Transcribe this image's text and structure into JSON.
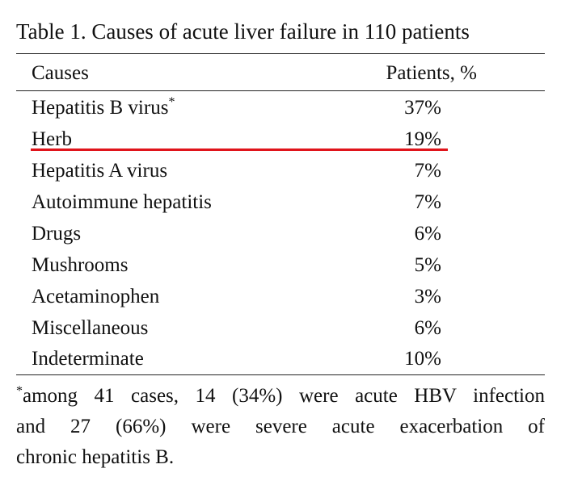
{
  "table": {
    "title": "Table 1. Causes of acute liver failure in 110 patients",
    "header": {
      "cause": "Causes",
      "patients": "Patients, %"
    },
    "rows": [
      {
        "cause": "Hepatitis B virus",
        "marker": "*",
        "patients": "37%"
      },
      {
        "cause": "Herb",
        "marker": "",
        "patients": "19%"
      },
      {
        "cause": "Hepatitis A virus",
        "marker": "",
        "patients": "7%"
      },
      {
        "cause": "Autoimmune hepatitis",
        "marker": "",
        "patients": "7%"
      },
      {
        "cause": "Drugs",
        "marker": "",
        "patients": "6%"
      },
      {
        "cause": "Mushrooms",
        "marker": "",
        "patients": "5%"
      },
      {
        "cause": "Acetaminophen",
        "marker": "",
        "patients": "3%"
      },
      {
        "cause": "Miscellaneous",
        "marker": "",
        "patients": "6%"
      },
      {
        "cause": "Indeterminate",
        "marker": "",
        "patients": "10%"
      }
    ],
    "footnote": {
      "marker": "*",
      "lines": [
        "among 41 cases, 14 (34%) were acute HBV infection",
        "and 27 (66%) were severe acute exacerbation of",
        "chronic hepatitis B."
      ]
    },
    "highlight_color": "#e0141b"
  }
}
